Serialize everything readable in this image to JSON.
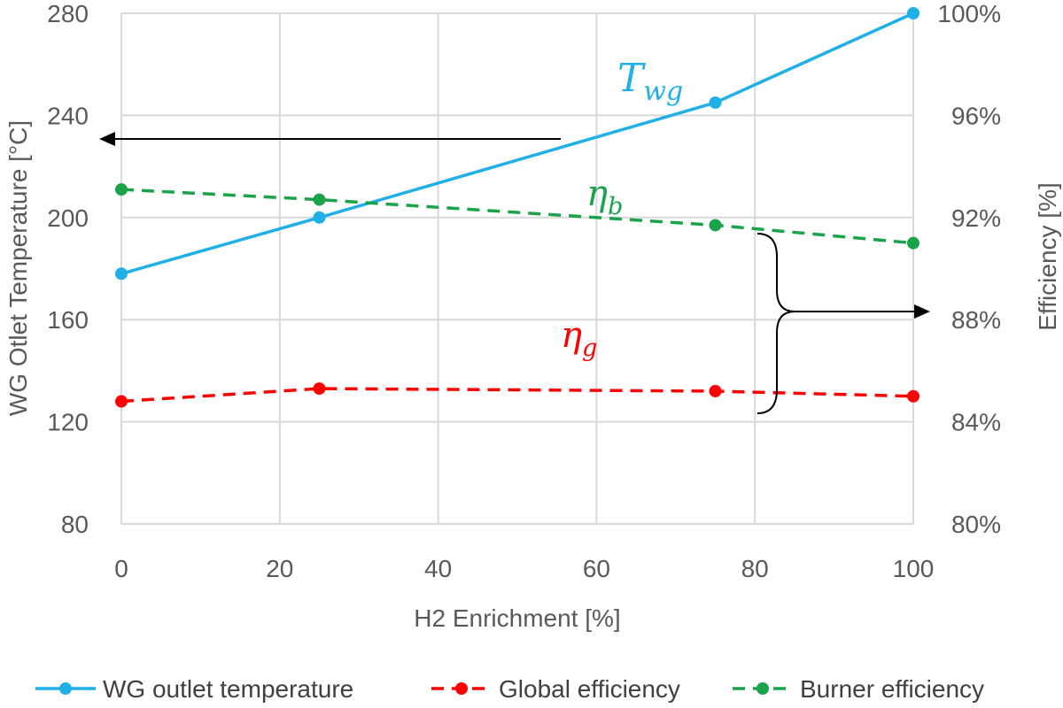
{
  "chart_data": {
    "type": "line",
    "x": [
      0,
      25,
      75,
      100
    ],
    "xlabel": "H2 Enrichment [%]",
    "ylabel": "WG Otlet Temperature [°C]",
    "y2label": "Efficiency [%]",
    "xlim": [
      0,
      100
    ],
    "ylim": [
      80,
      280
    ],
    "y2lim": [
      80,
      100
    ],
    "x_ticks": [
      "0",
      "20",
      "40",
      "60",
      "80",
      "100"
    ],
    "y_ticks": [
      "80",
      "120",
      "160",
      "200",
      "240",
      "280"
    ],
    "y2_ticks": [
      "80%",
      "84%",
      "88%",
      "92%",
      "96%",
      "100%"
    ],
    "grid": true,
    "legend_position": "bottom",
    "series": [
      {
        "name": "WG outlet temperature",
        "axis": "left",
        "values": [
          178,
          200,
          245,
          280
        ],
        "color": "#1fb0e8",
        "style": "solid"
      },
      {
        "name": "Global efficiency",
        "axis": "right",
        "values": [
          84.8,
          85.3,
          85.2,
          85.0
        ],
        "color": "#ff0000",
        "style": "dashed"
      },
      {
        "name": "Burner efficiency",
        "axis": "right",
        "values": [
          93.1,
          92.7,
          91.7,
          91.0
        ],
        "color": "#1aa34a",
        "style": "dashed"
      }
    ],
    "annotations": [
      {
        "main": "T",
        "sub": "wg",
        "color": "#1fb0e8"
      },
      {
        "main": "η",
        "sub": "b",
        "color": "#1aa34a"
      },
      {
        "main": "η",
        "sub": "g",
        "color": "#ff0000"
      }
    ]
  }
}
